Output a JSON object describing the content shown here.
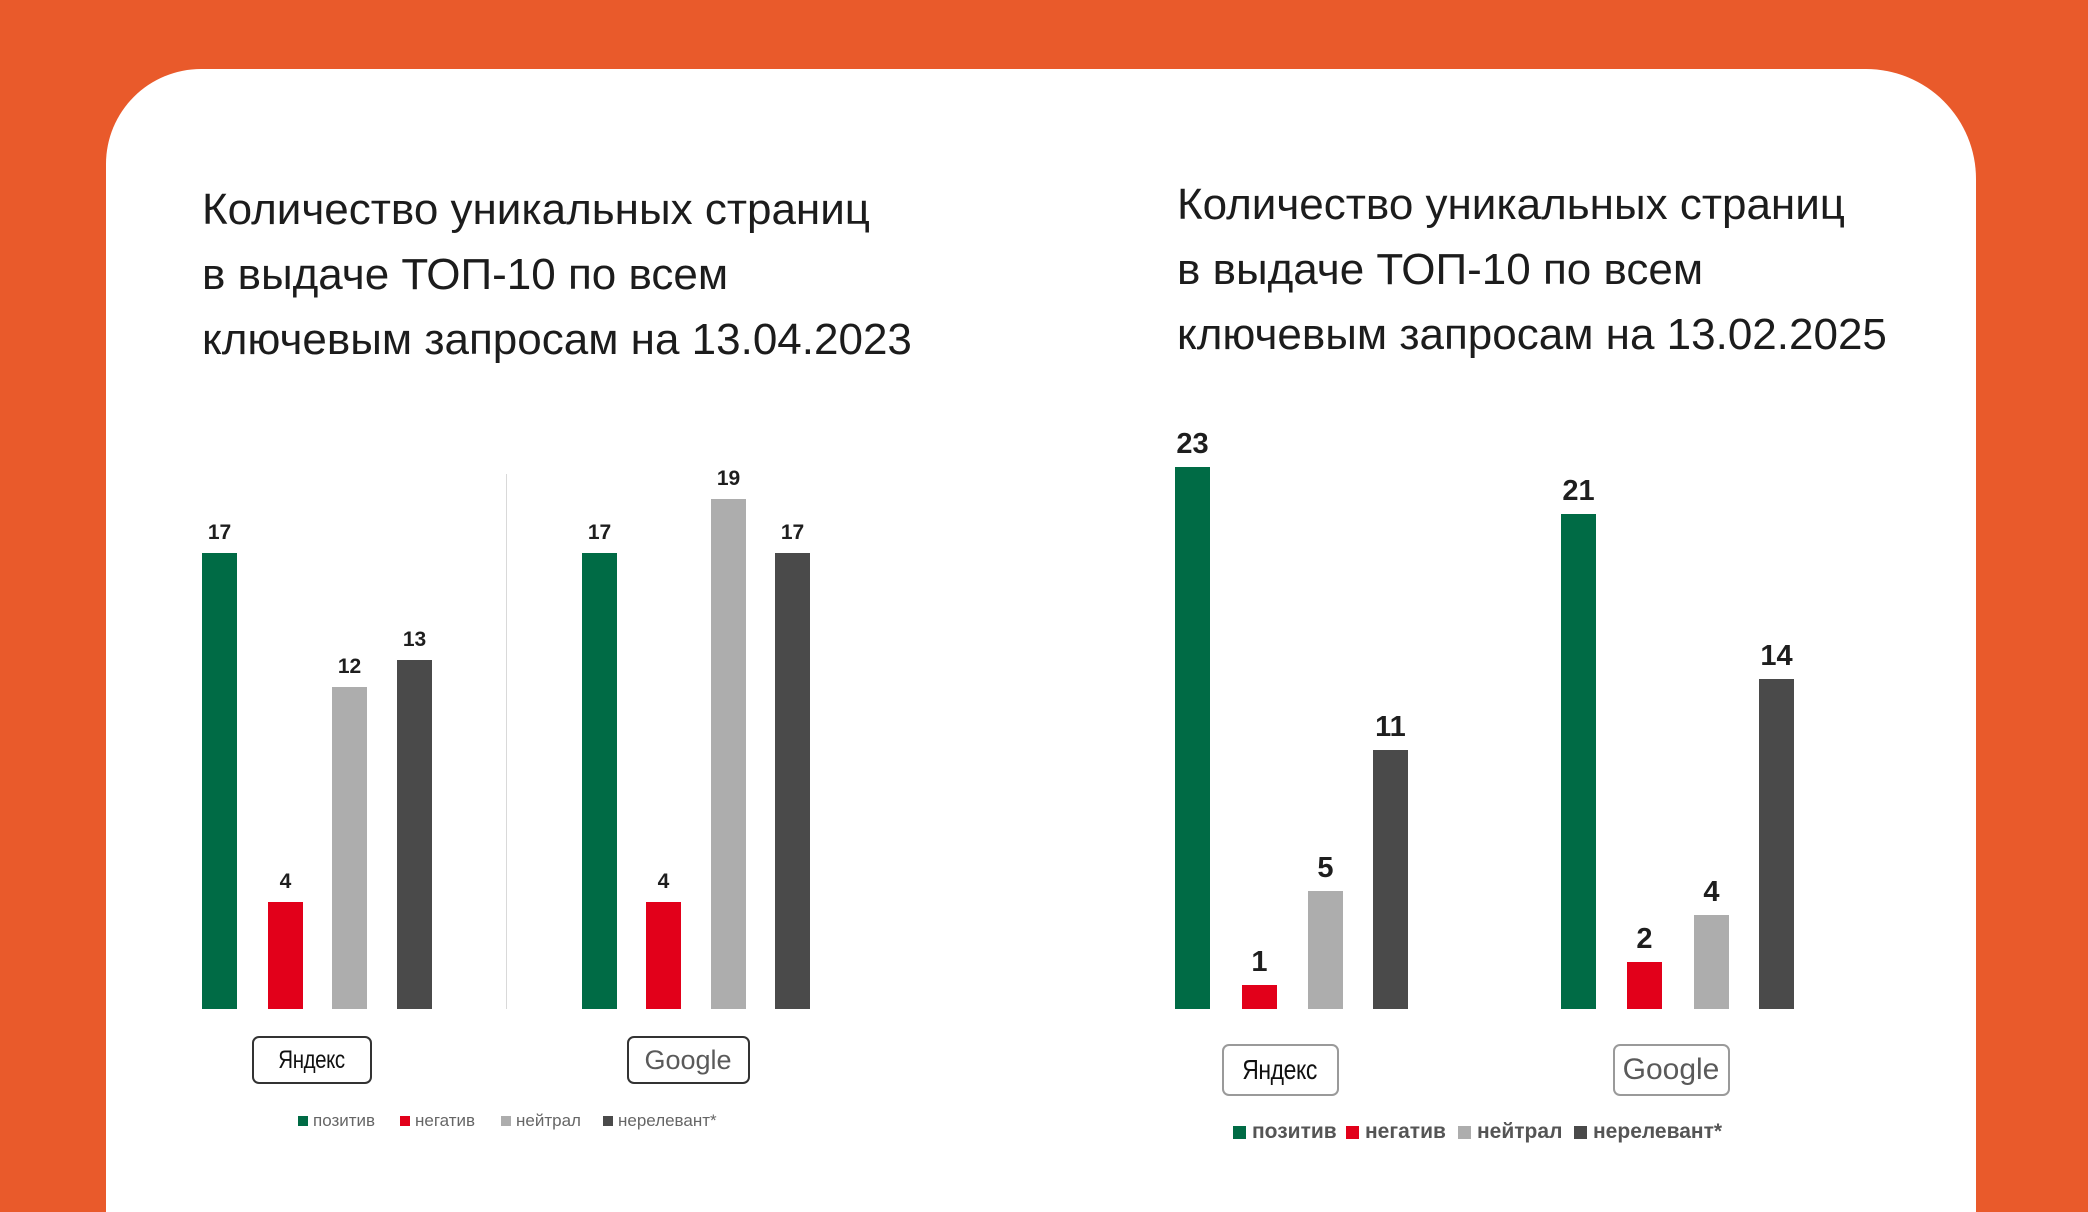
{
  "colors": {
    "background": "#E95A2B",
    "card": "#FFFFFF"
  },
  "chart_data": [
    {
      "type": "bar",
      "title": "Количество уникальных страниц\nв выдаче ТОП-10 по всем\nключевым запросам на 13.04.2023",
      "categories": [
        "Яндекс",
        "Google"
      ],
      "series": [
        {
          "name": "позитив",
          "values": [
            17,
            17
          ],
          "color": "#006B45"
        },
        {
          "name": "негатив",
          "values": [
            4,
            4
          ],
          "color": "#E2001A"
        },
        {
          "name": "нейтрал",
          "values": [
            12,
            19
          ],
          "color": "#ADADAD"
        },
        {
          "name": "нерелевант*",
          "values": [
            13,
            17
          ],
          "color": "#4A4A4A"
        }
      ],
      "legend": "bottom",
      "grid": false
    },
    {
      "type": "bar",
      "title": "Количество уникальных страниц\nв выдаче ТОП-10 по всем\nключевым запросам на 13.02.2025",
      "categories": [
        "Яндекс",
        "Google"
      ],
      "series": [
        {
          "name": "позитив",
          "values": [
            23,
            21
          ],
          "color": "#006B45"
        },
        {
          "name": "негатив",
          "values": [
            1,
            2
          ],
          "color": "#E2001A"
        },
        {
          "name": "нейтрал",
          "values": [
            5,
            4
          ],
          "color": "#ADADAD"
        },
        {
          "name": "нерелевант*",
          "values": [
            11,
            14
          ],
          "color": "#4A4A4A"
        }
      ],
      "legend": "bottom",
      "grid": false
    }
  ]
}
